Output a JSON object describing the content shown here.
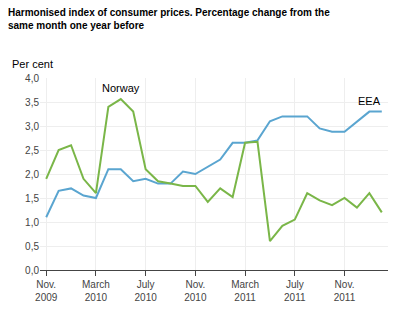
{
  "chart_data": {
    "type": "line",
    "title": "Harmonised index of consumer prices. Percentage change from the\nsame month one year before",
    "ylabel": "Per cent",
    "categories": [
      "Nov.\n2009",
      null,
      null,
      null,
      "March\n2010",
      null,
      null,
      null,
      "July\n2010",
      null,
      null,
      null,
      "Nov.\n2010",
      null,
      null,
      null,
      "March\n2011",
      null,
      null,
      null,
      "July\n2011",
      null,
      null,
      null,
      "Nov.\n2011",
      null,
      null,
      null
    ],
    "series": [
      {
        "name": "EEA",
        "color": "#5aa5d0",
        "values": [
          1.1,
          1.65,
          1.7,
          1.55,
          1.5,
          2.1,
          2.1,
          1.85,
          1.9,
          1.8,
          1.8,
          2.05,
          2.0,
          2.15,
          2.3,
          2.65,
          2.65,
          2.7,
          3.1,
          3.2,
          3.2,
          3.2,
          2.95,
          2.88,
          2.88,
          3.1,
          3.3,
          3.3
        ]
      },
      {
        "name": "Norway",
        "color": "#7ab648",
        "values": [
          1.9,
          2.5,
          2.6,
          1.9,
          1.6,
          3.4,
          3.56,
          3.3,
          2.1,
          1.85,
          1.8,
          1.75,
          1.75,
          1.42,
          1.7,
          1.52,
          2.65,
          2.67,
          0.6,
          0.92,
          1.05,
          1.6,
          1.45,
          1.35,
          1.5,
          1.3,
          1.6,
          1.2
        ]
      }
    ],
    "ylim": [
      0.0,
      4.0
    ],
    "yticks": [
      {
        "value": 0.0,
        "label": "0,0"
      },
      {
        "value": 0.5,
        "label": "0,5"
      },
      {
        "value": 1.0,
        "label": "1,0"
      },
      {
        "value": 1.5,
        "label": "1,5"
      },
      {
        "value": 2.0,
        "label": "2,0"
      },
      {
        "value": 2.5,
        "label": "2,5"
      },
      {
        "value": 3.0,
        "label": "3,0"
      },
      {
        "value": 3.5,
        "label": "3,5"
      },
      {
        "value": 4.0,
        "label": "4,0"
      }
    ],
    "grid": true
  }
}
